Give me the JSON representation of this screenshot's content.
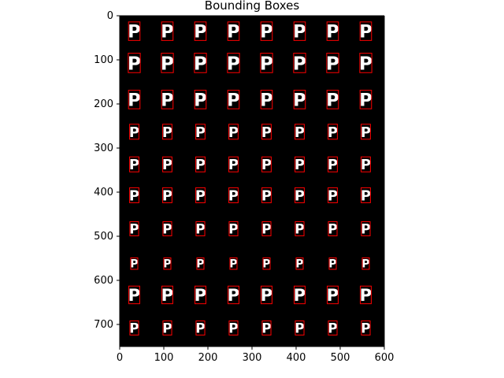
{
  "chart_data": {
    "type": "image",
    "title": "Bounding Boxes",
    "xlabel": "",
    "ylabel": "",
    "xlim": [
      0,
      600
    ],
    "ylim": [
      750,
      0
    ],
    "x_ticks": [
      0,
      100,
      200,
      300,
      400,
      500,
      600
    ],
    "y_ticks": [
      0,
      100,
      200,
      300,
      400,
      500,
      600,
      700
    ],
    "grid": false,
    "legend": "none",
    "background_color": "#000000",
    "glyph_color": "#ffffff",
    "box_color": "#ff0000",
    "glyph_character": "P",
    "column_centers": [
      33,
      108,
      183,
      258,
      333,
      408,
      483,
      558
    ],
    "rows": [
      {
        "y_center": 35,
        "box_height": 42
      },
      {
        "y_center": 107,
        "box_height": 44
      },
      {
        "y_center": 190,
        "box_height": 42
      },
      {
        "y_center": 263,
        "box_height": 34
      },
      {
        "y_center": 337,
        "box_height": 34
      },
      {
        "y_center": 407,
        "box_height": 34
      },
      {
        "y_center": 483,
        "box_height": 32
      },
      {
        "y_center": 562,
        "box_height": 26
      },
      {
        "y_center": 633,
        "box_height": 40
      },
      {
        "y_center": 708,
        "box_height": 32
      }
    ]
  }
}
